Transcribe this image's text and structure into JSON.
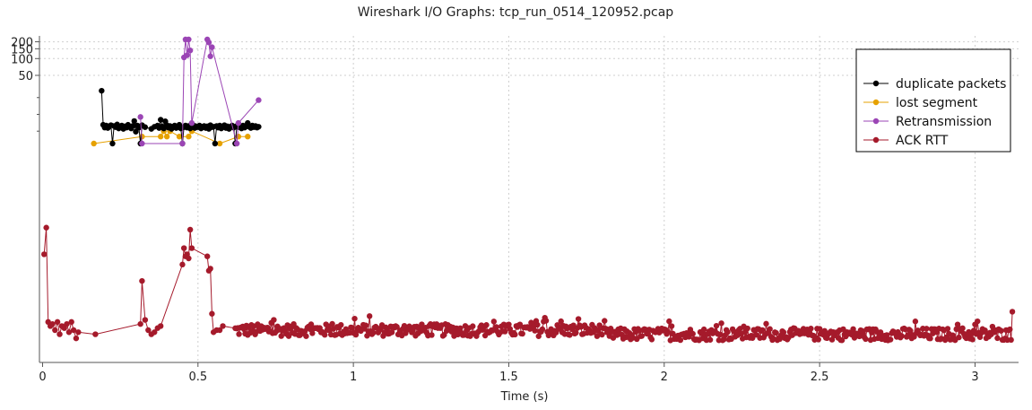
{
  "chart_data": {
    "type": "line",
    "title": "Wireshark I/O Graphs: tcp_run_0514_120952.pcap",
    "xlabel": "Time (s)",
    "ylabel": "",
    "xlim": [
      -0.01,
      3.14
    ],
    "ylim_top_log": [
      30,
      220
    ],
    "x_ticks": [
      0,
      0.5,
      1,
      1.5,
      2,
      2.5,
      3
    ],
    "x_tick_labels": [
      "0",
      "0.5",
      "1",
      "1.5",
      "2",
      "2.5",
      "3"
    ],
    "y_ticks": [
      50,
      100,
      150,
      200
    ],
    "y_tick_labels": [
      "50",
      "100",
      "150",
      "200"
    ],
    "grid": true,
    "legend": "top-right",
    "series": [
      {
        "name": "duplicate packets",
        "color": "#000000",
        "x": [
          0.19,
          0.195,
          0.2,
          0.205,
          0.21,
          0.215,
          0.22,
          0.225,
          0.23,
          0.235,
          0.24,
          0.245,
          0.25,
          0.255,
          0.26,
          0.265,
          0.27,
          0.275,
          0.28,
          0.285,
          0.29,
          0.295,
          0.3,
          0.305,
          0.31,
          0.315,
          0.32,
          0.33,
          0.35,
          0.36,
          0.37,
          0.375,
          0.38,
          0.385,
          0.39,
          0.395,
          0.4,
          0.405,
          0.41,
          0.415,
          0.42,
          0.425,
          0.43,
          0.435,
          0.44,
          0.445,
          0.45,
          0.455,
          0.46,
          0.465,
          0.47,
          0.475,
          0.48,
          0.485,
          0.49,
          0.495,
          0.5,
          0.505,
          0.51,
          0.515,
          0.52,
          0.525,
          0.53,
          0.535,
          0.54,
          0.545,
          0.55,
          0.555,
          0.56,
          0.565,
          0.57,
          0.575,
          0.58,
          0.585,
          0.59,
          0.595,
          0.6,
          0.605,
          0.61,
          0.615,
          0.62,
          0.625,
          0.63,
          0.635,
          0.64,
          0.645,
          0.65,
          0.655,
          0.66,
          0.665,
          0.67,
          0.675,
          0.68,
          0.685,
          0.69,
          0.695
        ],
        "y": [
          26.5,
          6.5,
          5.8,
          6.3,
          5.7,
          6.1,
          6.4,
          3.0,
          6.2,
          5.9,
          6.6,
          5.6,
          6.0,
          6.3,
          5.5,
          6.1,
          5.8,
          6.5,
          6.0,
          5.6,
          6.2,
          7.6,
          4.9,
          6.3,
          5.8,
          3.0,
          6.4,
          5.9,
          5.5,
          6.0,
          6.3,
          5.7,
          8.0,
          6.1,
          5.6,
          7.5,
          6.4,
          5.8,
          6.2,
          5.5,
          6.0,
          6.3,
          5.7,
          6.1,
          6.5,
          5.6,
          3.0,
          5.9,
          6.3,
          5.8,
          6.2,
          5.6,
          6.0,
          6.4,
          5.7,
          6.1,
          5.9,
          6.3,
          5.6,
          6.0,
          6.2,
          5.7,
          6.1,
          5.5,
          6.4,
          5.9,
          6.0,
          3.0,
          6.2,
          5.8,
          6.3,
          5.6,
          6.0,
          6.4,
          5.7,
          6.1,
          5.5,
          6.0,
          6.3,
          5.8,
          3.0,
          6.2,
          5.9,
          6.0,
          5.6,
          6.3,
          5.8,
          6.1,
          7.0,
          6.0,
          5.7,
          6.3,
          5.9,
          6.2,
          5.8,
          6.0
        ]
      },
      {
        "name": "lost segment",
        "color": "#e6a100",
        "x": [
          0.165,
          0.32,
          0.38,
          0.39,
          0.4,
          0.41,
          0.44,
          0.47,
          0.48,
          0.57,
          0.63,
          0.66
        ],
        "y": [
          3.0,
          4.0,
          4.0,
          5.0,
          4.0,
          5.0,
          4.0,
          4.0,
          5.0,
          3.0,
          4.0,
          4.0
        ]
      },
      {
        "name": "Retransmission",
        "color": "#9b45b5",
        "x": [
          0.315,
          0.32,
          0.45,
          0.455,
          0.46,
          0.465,
          0.47,
          0.475,
          0.48,
          0.53,
          0.535,
          0.54,
          0.545,
          0.625,
          0.63,
          0.695
        ],
        "y": [
          9.0,
          3.0,
          3.0,
          105,
          220,
          115,
          220,
          140,
          7.0,
          220,
          195,
          110,
          160,
          3.0,
          7.0,
          18.0
        ]
      },
      {
        "name": "ACK RTT",
        "color": "#a51a2b",
        "x": [
          0.005,
          0.012,
          0.018,
          0.025,
          0.032,
          0.04,
          0.048,
          0.055,
          0.062,
          0.07,
          0.078,
          0.085,
          0.093,
          0.1,
          0.108,
          0.115,
          0.17,
          0.315,
          0.32,
          0.33,
          0.34,
          0.35,
          0.36,
          0.37,
          0.38,
          0.45,
          0.455,
          0.46,
          0.465,
          0.47,
          0.475,
          0.48,
          0.53,
          0.535,
          0.54,
          0.545,
          0.55,
          0.56,
          0.57,
          0.58
        ],
        "y": [
          0.255,
          0.32,
          0.09,
          0.08,
          0.085,
          0.07,
          0.09,
          0.06,
          0.08,
          0.075,
          0.085,
          0.065,
          0.09,
          0.07,
          0.05,
          0.065,
          0.06,
          0.085,
          0.19,
          0.095,
          0.07,
          0.06,
          0.065,
          0.075,
          0.08,
          0.23,
          0.27,
          0.25,
          0.255,
          0.245,
          0.315,
          0.27,
          0.25,
          0.215,
          0.22,
          0.11,
          0.065,
          0.07,
          0.07,
          0.08
        ],
        "noise_from_x": 0.62,
        "noise_to_x": 3.12,
        "noise_step": 0.004,
        "noise_base": 0.06,
        "noise_amp": 0.03,
        "tail_x": 3.12,
        "tail_y": 0.115
      }
    ]
  }
}
